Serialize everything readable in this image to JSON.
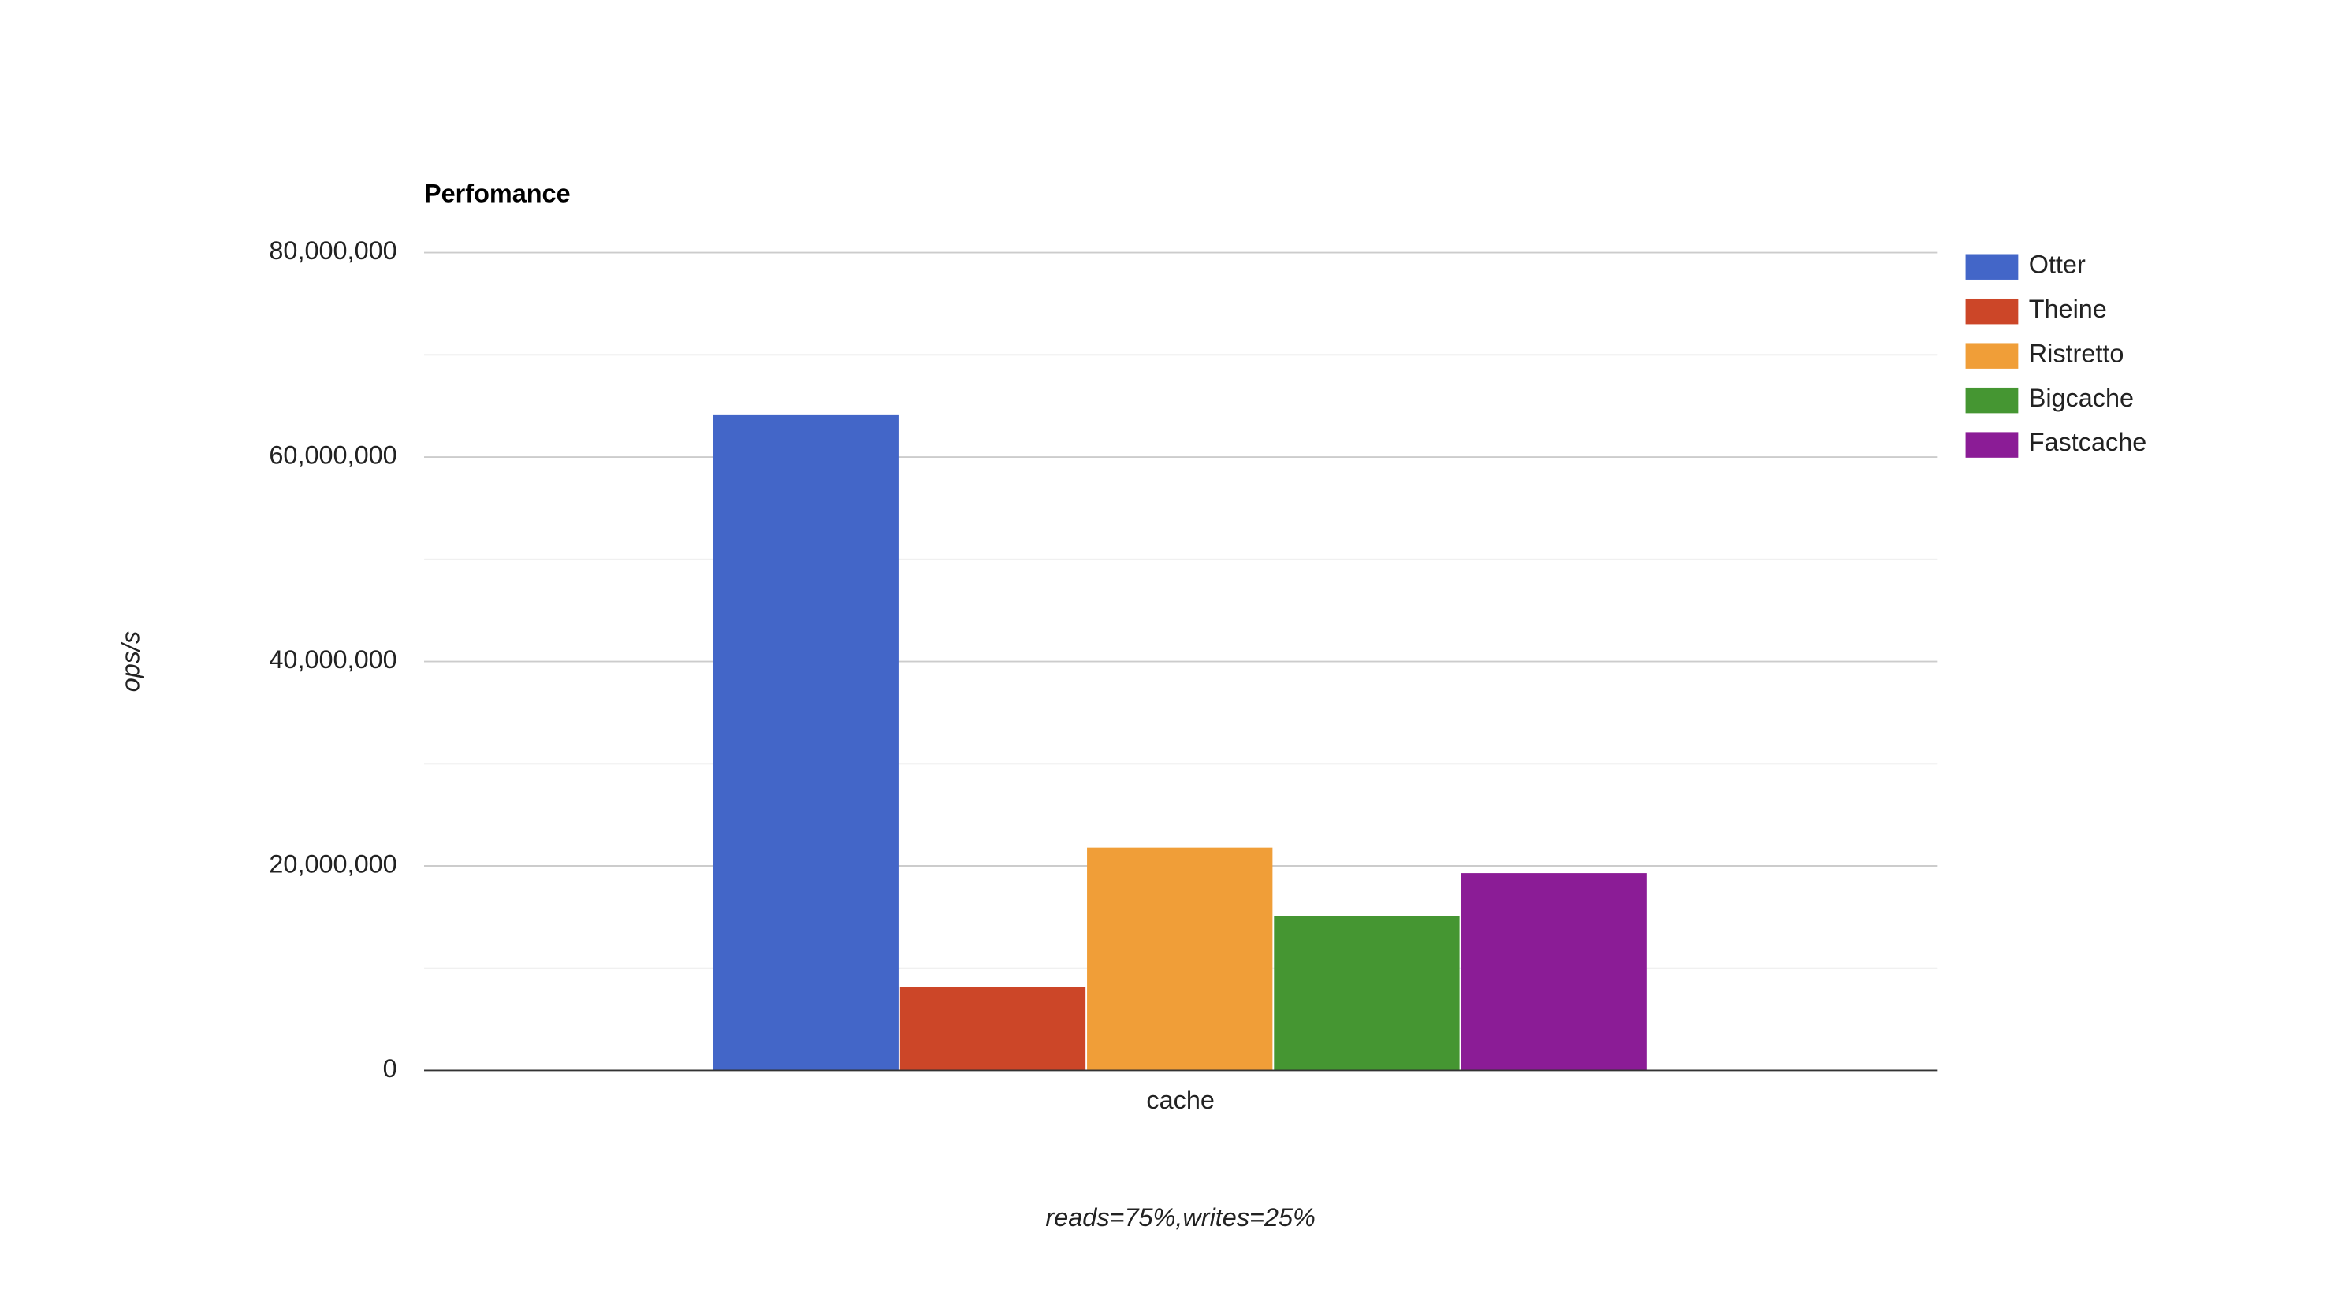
{
  "chart_data": {
    "type": "bar",
    "title": "Perfomance",
    "x_label": "reads=75%,writes=25%",
    "y_label": "ops/s",
    "categories": [
      "cache"
    ],
    "series": [
      {
        "name": "Otter",
        "color": "#4366c8",
        "values": [
          64100000
        ]
      },
      {
        "name": "Theine",
        "color": "#cc4628",
        "values": [
          8200000
        ]
      },
      {
        "name": "Ristretto",
        "color": "#f09e38",
        "values": [
          21800000
        ]
      },
      {
        "name": "Bigcache",
        "color": "#459632",
        "values": [
          15100000
        ]
      },
      {
        "name": "Fastcache",
        "color": "#8b1c96",
        "values": [
          19300000
        ]
      }
    ],
    "ylim": [
      0,
      80000000
    ],
    "yticks": [
      0,
      {
        "value": 20000000,
        "label": "20,000,000"
      },
      {
        "value": 40000000,
        "label": "40,000,000"
      },
      {
        "value": 60000000,
        "label": "60,000,000"
      },
      {
        "value": 80000000,
        "label": "80,000,000"
      }
    ],
    "minor_yticks": [
      10000000,
      30000000,
      50000000,
      70000000
    ],
    "grid": true,
    "legend": "right"
  }
}
